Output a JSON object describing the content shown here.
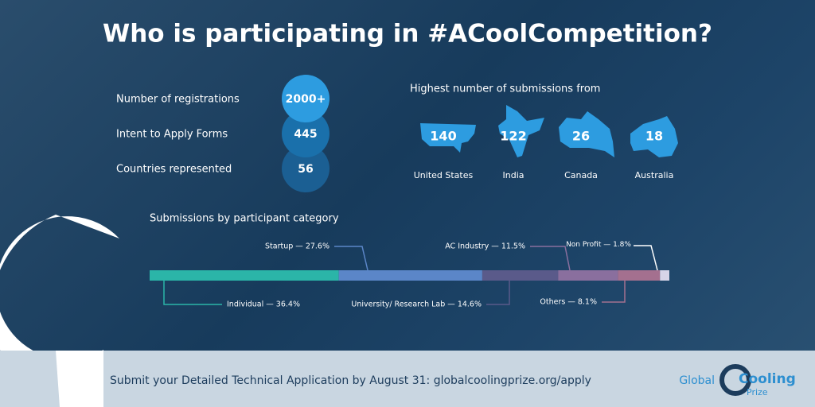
{
  "title": "Who is participating in #ACoolCompetition?",
  "stats": [
    {
      "label": "Number of registrations",
      "value": "2000+"
    },
    {
      "label": "Intent to Apply Forms",
      "value": "445"
    },
    {
      "label": "Countries represented",
      "value": "56"
    }
  ],
  "countries": {
    "title": "Highest number of submissions from",
    "items": [
      {
        "name": "United States",
        "value": 140
      },
      {
        "name": "India",
        "value": 122
      },
      {
        "name": "Canada",
        "value": 26
      },
      {
        "name": "Australia",
        "value": 18
      }
    ]
  },
  "chart_data": {
    "type": "stacked-bar",
    "title": "Submissions by participant category",
    "segments": [
      {
        "label": "Individual — 36.4%",
        "value": 36.4,
        "color": "#2bb5a8"
      },
      {
        "label": "Startup — 27.6%",
        "value": 27.6,
        "color": "#5b86c8"
      },
      {
        "label": "University/ Research Lab — 14.6%",
        "value": 14.6,
        "color": "#5a5a8a"
      },
      {
        "label": "AC Industry — 11.5%",
        "value": 11.5,
        "color": "#8a6f9e"
      },
      {
        "label": "Others — 8.1%",
        "value": 8.1,
        "color": "#a4708f"
      },
      {
        "label": "Non Profit — 1.8%",
        "value": 1.8,
        "color": "#d7d4e8"
      }
    ]
  },
  "footer": {
    "text": "Submit your Detailed Technical Application by August 31: globalcoolingprize.org/apply",
    "logo_global": "Global",
    "logo_cooling": "Cooling",
    "logo_prize": "Prize"
  }
}
